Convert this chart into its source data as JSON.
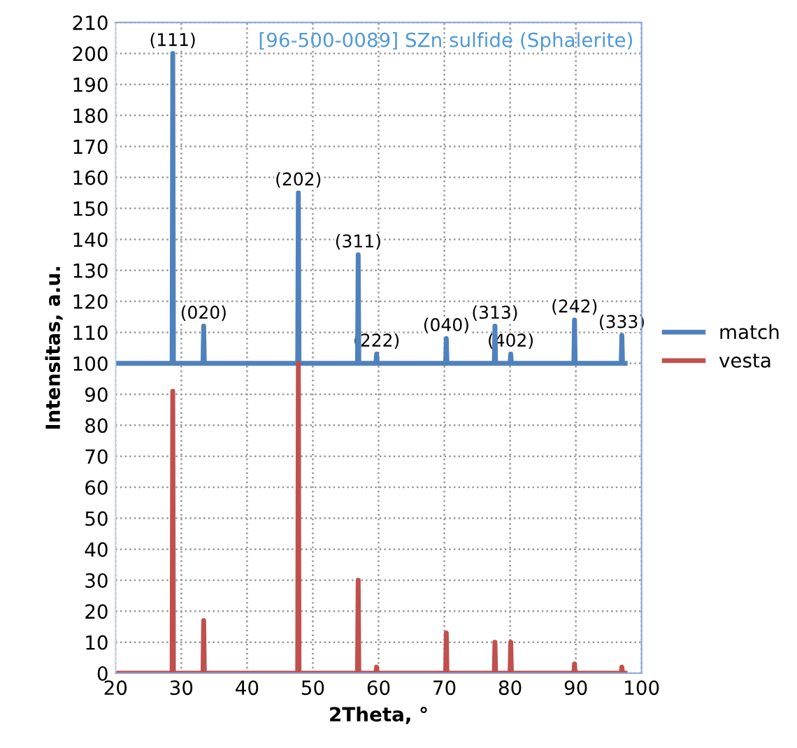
{
  "chart_data": {
    "type": "line",
    "xlabel": "2Theta, °",
    "ylabel": "Intensitas, a.u.",
    "xlim": [
      20,
      100
    ],
    "xticks": [
      20,
      30,
      40,
      50,
      60,
      70,
      80,
      90,
      100
    ],
    "ylim": [
      0,
      210
    ],
    "yticks": [
      0,
      10,
      20,
      30,
      40,
      50,
      60,
      70,
      80,
      90,
      100,
      110,
      120,
      130,
      140,
      150,
      160,
      170,
      180,
      190,
      200,
      210
    ],
    "grid": true,
    "legend": "right",
    "marker": "none",
    "line_style": "solid",
    "series": [
      {
        "name": "match",
        "color": "#4f81bd",
        "x": [
          20,
          28.6,
          28.7,
          28.8,
          33.3,
          33.4,
          33.5,
          47.7,
          47.8,
          47.9,
          56.8,
          56.9,
          57.0,
          59.6,
          59.7,
          59.8,
          70.2,
          70.3,
          70.4,
          77.6,
          77.7,
          77.8,
          80.0,
          80.1,
          80.2,
          89.7,
          89.8,
          89.9,
          96.9,
          97.0,
          97.1,
          97.5
        ],
        "values": [
          100,
          100,
          200,
          100,
          100,
          112,
          100,
          100,
          155,
          100,
          100,
          135,
          100,
          100,
          103,
          100,
          100,
          108,
          100,
          100,
          112,
          100,
          100,
          103,
          100,
          100,
          114,
          100,
          100,
          109,
          100,
          100
        ]
      },
      {
        "name": "vesta",
        "color": "#c0504d",
        "x": [
          20,
          28.6,
          28.7,
          28.8,
          33.3,
          33.4,
          33.5,
          47.7,
          47.8,
          47.9,
          56.8,
          56.9,
          57.0,
          59.6,
          59.7,
          59.8,
          70.2,
          70.3,
          70.4,
          77.6,
          77.7,
          77.8,
          80.0,
          80.1,
          80.2,
          89.7,
          89.8,
          89.9,
          96.9,
          97.0,
          97.1,
          97.5
        ],
        "values": [
          0,
          0,
          91,
          0,
          0,
          17,
          0,
          0,
          100,
          0,
          0,
          30,
          0,
          0,
          2,
          0,
          0,
          13,
          0,
          0,
          10,
          0,
          0,
          10,
          0,
          0,
          3,
          0,
          0,
          2,
          0,
          0
        ]
      }
    ],
    "annotations": [
      "[96-500-0089] SZn sulfide (Sphalerite)",
      {
        "text": "(111)",
        "x": 28.7,
        "y": 200
      },
      {
        "text": "(020)",
        "x": 33.4,
        "y": 112
      },
      {
        "text": "(202)",
        "x": 47.8,
        "y": 155
      },
      {
        "text": "(311)",
        "x": 56.9,
        "y": 135
      },
      {
        "text": "(222)",
        "x": 59.7,
        "y": 103
      },
      {
        "text": "(040)",
        "x": 70.3,
        "y": 108
      },
      {
        "text": "(313)",
        "x": 77.7,
        "y": 112
      },
      {
        "text": "(402)",
        "x": 80.1,
        "y": 103
      },
      {
        "text": "(242)",
        "x": 89.8,
        "y": 114
      },
      {
        "text": "(333)",
        "x": 97.0,
        "y": 109
      }
    ]
  }
}
